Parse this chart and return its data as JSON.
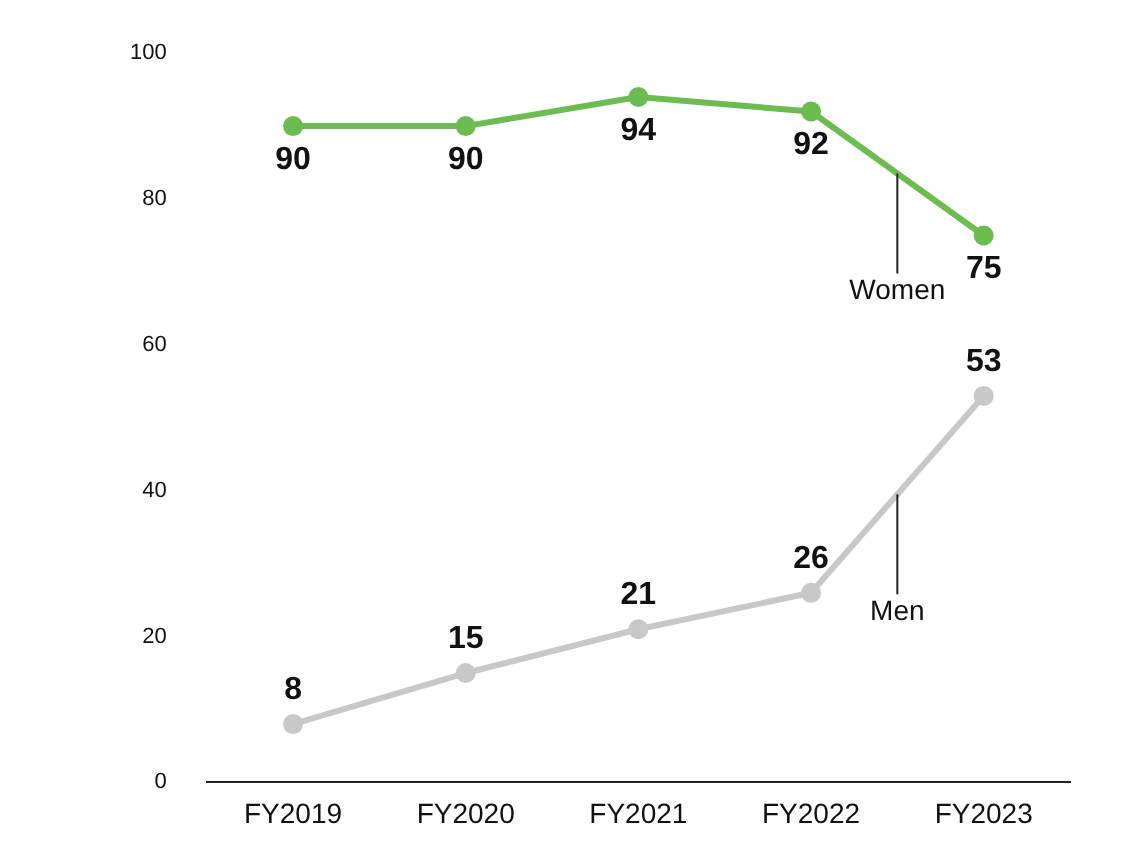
{
  "chart_data": {
    "type": "line",
    "categories": [
      "FY2019",
      "FY2020",
      "FY2021",
      "FY2022",
      "FY2023"
    ],
    "series": [
      {
        "name": "Women",
        "color": "#6cbd4f",
        "values": [
          90,
          90,
          94,
          92,
          75
        ]
      },
      {
        "name": "Men",
        "color": "#c8c8c8",
        "values": [
          8,
          15,
          21,
          26,
          53
        ]
      }
    ],
    "ylim": [
      0,
      100
    ],
    "yticks": [
      0,
      20,
      40,
      60,
      80,
      100
    ],
    "grid": false,
    "legend": false,
    "marker": "circle",
    "line_style": "solid",
    "data_labels": true
  }
}
